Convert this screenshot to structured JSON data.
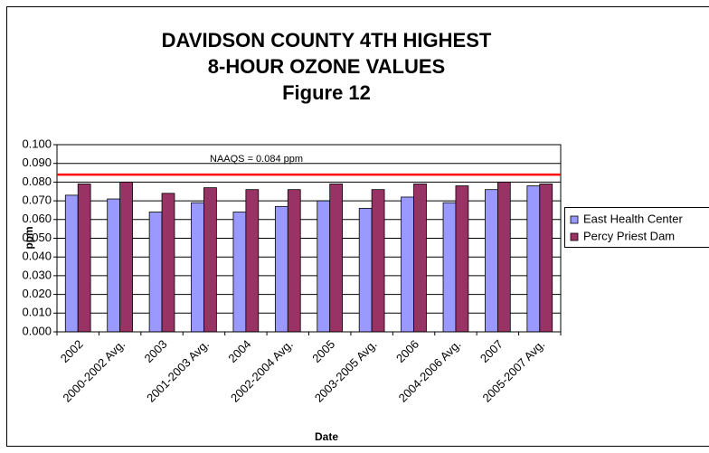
{
  "chart_data": {
    "type": "bar",
    "title": [
      "DAVIDSON COUNTY 4TH HIGHEST",
      "8-HOUR OZONE VALUES",
      "Figure 12"
    ],
    "x_label": "Date",
    "y_label": "ppm",
    "categories": [
      "2002",
      "2000-2002 Avg.",
      "2003",
      "2001-2003 Avg.",
      "2004",
      "2002-2004 Avg.",
      "2005",
      "2003-2005 Avg.",
      "2006",
      "2004-2006 Avg.",
      "2007",
      "2005-2007 Avg."
    ],
    "series": [
      {
        "name": "East Health Center",
        "color": "#9999ff",
        "values": [
          0.073,
          0.071,
          0.064,
          0.069,
          0.064,
          0.067,
          0.07,
          0.066,
          0.072,
          0.069,
          0.076,
          0.078
        ]
      },
      {
        "name": "Percy Priest Dam",
        "color": "#993366",
        "values": [
          0.079,
          0.08,
          0.074,
          0.077,
          0.076,
          0.076,
          0.079,
          0.076,
          0.079,
          0.078,
          0.08,
          0.079
        ]
      }
    ],
    "ylim": [
      0,
      0.1
    ],
    "yticks": [
      {
        "value": 0,
        "label": "0.000"
      },
      {
        "value": 0.01,
        "label": "0.010"
      },
      {
        "value": 0.02,
        "label": "0.020"
      },
      {
        "value": 0.03,
        "label": "0.030"
      },
      {
        "value": 0.04,
        "label": "0.040"
      },
      {
        "value": 0.05,
        "label": "0.050"
      },
      {
        "value": 0.06,
        "label": "0.060"
      },
      {
        "value": 0.07,
        "label": "0.070"
      },
      {
        "value": 0.08,
        "label": "0.080"
      },
      {
        "value": 0.09,
        "label": "0.090"
      },
      {
        "value": 0.1,
        "label": "0.100"
      }
    ],
    "grid": true,
    "reference_line": {
      "value": 0.084,
      "label": "NAAQS = 0.084 ppm",
      "color": "#ff0000"
    },
    "legend": "right"
  }
}
